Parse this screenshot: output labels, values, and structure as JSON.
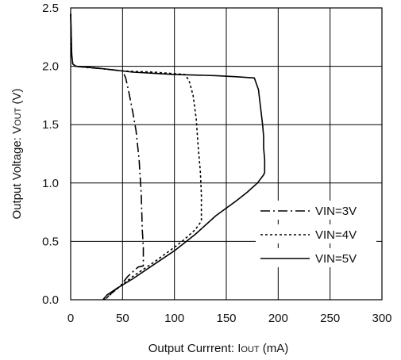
{
  "chart_data": {
    "type": "line",
    "xlabel_main": "Output Currrent: I",
    "xlabel_sub": "OUT",
    "xlabel_unit": " (mA)",
    "ylabel_main": "Output Voltage: V",
    "ylabel_sub": "OUT",
    "ylabel_unit": " (V)",
    "xlim": [
      0,
      300
    ],
    "ylim": [
      0,
      2.5
    ],
    "x_ticks": [
      "0",
      "50",
      "100",
      "150",
      "200",
      "250",
      "300"
    ],
    "y_ticks": [
      "0.0",
      "0.5",
      "1.0",
      "1.5",
      "2.0",
      "2.5"
    ],
    "grid": true,
    "legend_position": "lower-right",
    "series": [
      {
        "name": "VIN=3V",
        "dash": "dash-dot",
        "x": [
          0,
          1,
          2,
          5,
          15,
          30,
          50,
          53,
          56,
          60,
          63,
          66,
          68,
          69,
          70,
          70,
          70,
          65,
          55,
          48,
          45,
          40,
          35,
          32
        ],
        "y": [
          2.45,
          2.1,
          2.02,
          2.0,
          1.99,
          1.98,
          1.96,
          1.9,
          1.78,
          1.6,
          1.45,
          1.2,
          0.9,
          0.6,
          0.45,
          0.3,
          0.29,
          0.28,
          0.2,
          0.12,
          0.1,
          0.06,
          0.02,
          0.0
        ]
      },
      {
        "name": "VIN=4V",
        "dash": "dotted",
        "x": [
          0,
          1,
          2,
          5,
          20,
          50,
          80,
          110,
          114,
          118,
          121,
          123,
          125,
          126,
          126,
          125,
          120,
          110,
          100,
          80,
          60,
          50,
          40,
          33
        ],
        "y": [
          2.45,
          2.1,
          2.02,
          2.0,
          1.99,
          1.96,
          1.95,
          1.93,
          1.88,
          1.75,
          1.55,
          1.3,
          1.1,
          0.9,
          0.68,
          0.66,
          0.6,
          0.52,
          0.45,
          0.32,
          0.2,
          0.13,
          0.06,
          0.0
        ]
      },
      {
        "name": "VIN=5V",
        "dash": "solid",
        "x": [
          0,
          1,
          2,
          5,
          30,
          60,
          100,
          140,
          160,
          177,
          181,
          183,
          185,
          186,
          186,
          187,
          187,
          186,
          180,
          170,
          160,
          140,
          120,
          100,
          80,
          60,
          45,
          35,
          31
        ],
        "y": [
          2.45,
          2.1,
          2.02,
          2.0,
          1.98,
          1.95,
          1.93,
          1.92,
          1.91,
          1.9,
          1.8,
          1.65,
          1.5,
          1.4,
          1.3,
          1.2,
          1.09,
          1.07,
          1.0,
          0.92,
          0.85,
          0.72,
          0.56,
          0.42,
          0.3,
          0.18,
          0.1,
          0.04,
          0.0
        ]
      }
    ]
  }
}
